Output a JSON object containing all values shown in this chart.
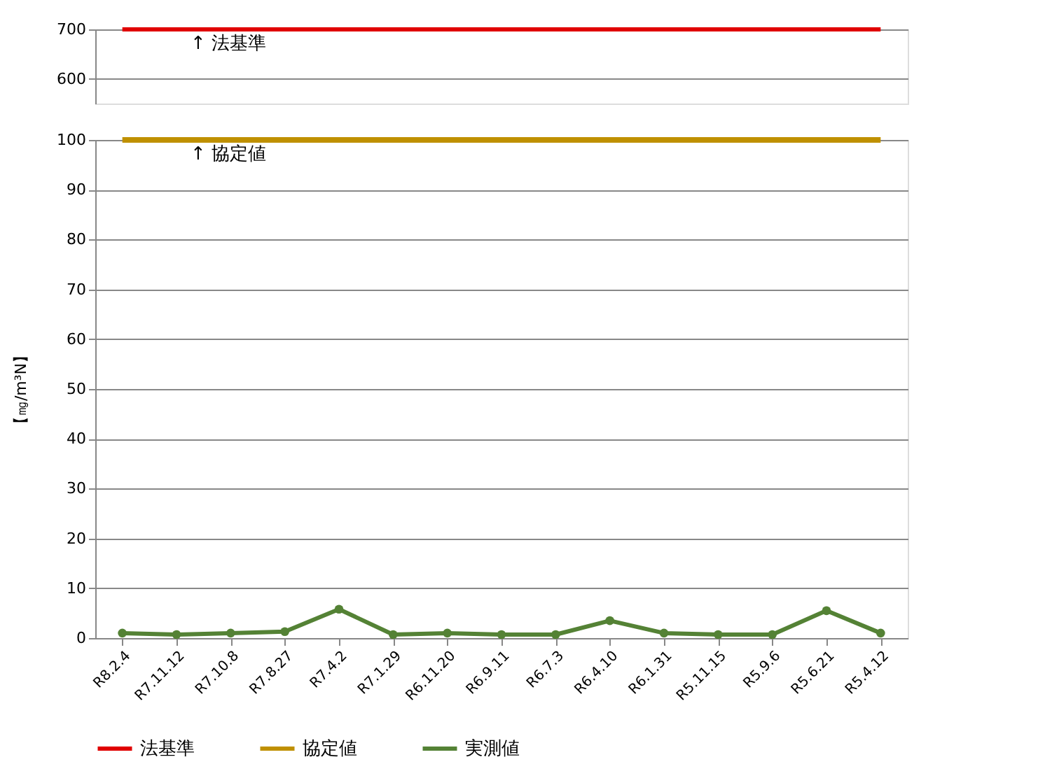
{
  "chart_data": [
    {
      "type": "line",
      "categories": [
        "R8.2.4",
        "R7.11.12",
        "R7.10.8",
        "R7.8.27",
        "R7.4.2",
        "R7.1.29",
        "R6.11.20",
        "R6.9.11",
        "R6.7.3",
        "R6.4.10",
        "R6.1.31",
        "R5.11.15",
        "R5.9.6",
        "R5.6.21",
        "R5.4.12"
      ],
      "series": [
        {
          "name": "法基準",
          "color": "#e00000",
          "marker": "none",
          "values": [
            700,
            700,
            700,
            700,
            700,
            700,
            700,
            700,
            700,
            700,
            700,
            700,
            700,
            700,
            700
          ]
        }
      ],
      "ylim": [
        550,
        700
      ],
      "yticks": [
        600,
        700
      ],
      "tick_labels": "y",
      "grid": "y",
      "legend": "bottom",
      "annotations": [
        "↑ 法基準"
      ]
    },
    {
      "type": "line",
      "categories": [
        "R8.2.4",
        "R7.11.12",
        "R7.10.8",
        "R7.8.27",
        "R7.4.2",
        "R7.1.29",
        "R6.11.20",
        "R6.9.11",
        "R6.7.3",
        "R6.4.10",
        "R6.1.31",
        "R5.11.15",
        "R5.9.6",
        "R5.6.21",
        "R5.4.12"
      ],
      "series": [
        {
          "name": "協定値",
          "color": "#bf9000",
          "marker": "none",
          "values": [
            100,
            100,
            100,
            100,
            100,
            100,
            100,
            100,
            100,
            100,
            100,
            100,
            100,
            100,
            100
          ]
        },
        {
          "name": "実測値",
          "color": "#548235",
          "marker": "circle",
          "values": [
            1,
            0.7,
            1,
            1.3,
            5.8,
            0.7,
            1,
            0.7,
            0.7,
            3.5,
            1,
            0.7,
            0.7,
            5.5,
            1
          ]
        }
      ],
      "ylabel": "【㎎/m³N】",
      "ylim": [
        0,
        100
      ],
      "yticks": [
        0,
        10,
        20,
        30,
        40,
        50,
        60,
        70,
        80,
        90,
        100
      ],
      "grid": "y",
      "legend": "bottom",
      "annotations": [
        "↑ 協定値"
      ]
    }
  ]
}
